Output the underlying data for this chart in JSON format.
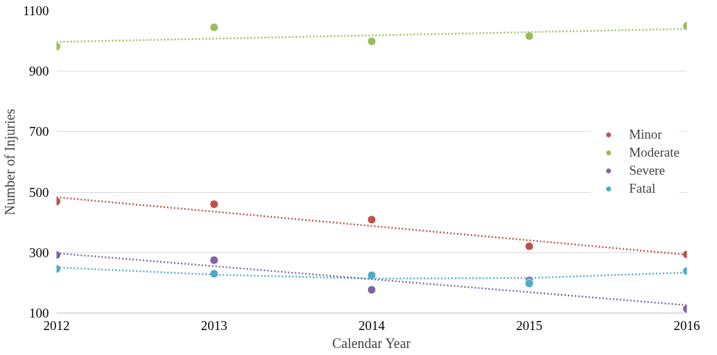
{
  "chart_data": {
    "type": "scatter",
    "xlabel": "Calendar Year",
    "ylabel": "Number of Injuries",
    "x": [
      2012,
      2013,
      2014,
      2015,
      2016
    ],
    "xlim": [
      2012,
      2016
    ],
    "xticks": [
      2012,
      2013,
      2014,
      2015,
      2016
    ],
    "ylim": [
      100,
      1100
    ],
    "yticks": [
      100,
      300,
      500,
      700,
      900,
      1100
    ],
    "grid": "y",
    "legend": "right",
    "marker": "circle",
    "series": [
      {
        "name": "Minor",
        "color": "#c0504d",
        "values": [
          469,
          460,
          409,
          321,
          294
        ]
      },
      {
        "name": "Moderate",
        "color": "#9bbb59",
        "values": [
          982,
          1045,
          999,
          1016,
          1050
        ]
      },
      {
        "name": "Severe",
        "color": "#8064a2",
        "values": [
          292,
          275,
          177,
          208,
          114
        ]
      },
      {
        "name": "Fatal",
        "color": "#4bacc6",
        "values": [
          246,
          230,
          225,
          198,
          239
        ]
      },
      {
        "type": "line",
        "line_style": "dotted",
        "marker": "none",
        "color": "#c0504d",
        "x": [
          2012,
          2016
        ],
        "values": [
          483,
          293
        ]
      },
      {
        "type": "line",
        "line_style": "dotted",
        "marker": "none",
        "color": "#9bbb59",
        "x": [
          2012,
          2016
        ],
        "values": [
          997,
          1040
        ]
      },
      {
        "type": "line",
        "line_style": "dotted",
        "marker": "none",
        "color": "#8064a2",
        "x": [
          2012,
          2016
        ],
        "values": [
          298,
          126
        ]
      },
      {
        "type": "line",
        "line_style": "dotted",
        "marker": "none",
        "color": "#4bacc6",
        "x": [
          2012,
          2013,
          2014,
          2015,
          2016
        ],
        "values": [
          251,
          227,
          214,
          216,
          234
        ]
      }
    ]
  }
}
